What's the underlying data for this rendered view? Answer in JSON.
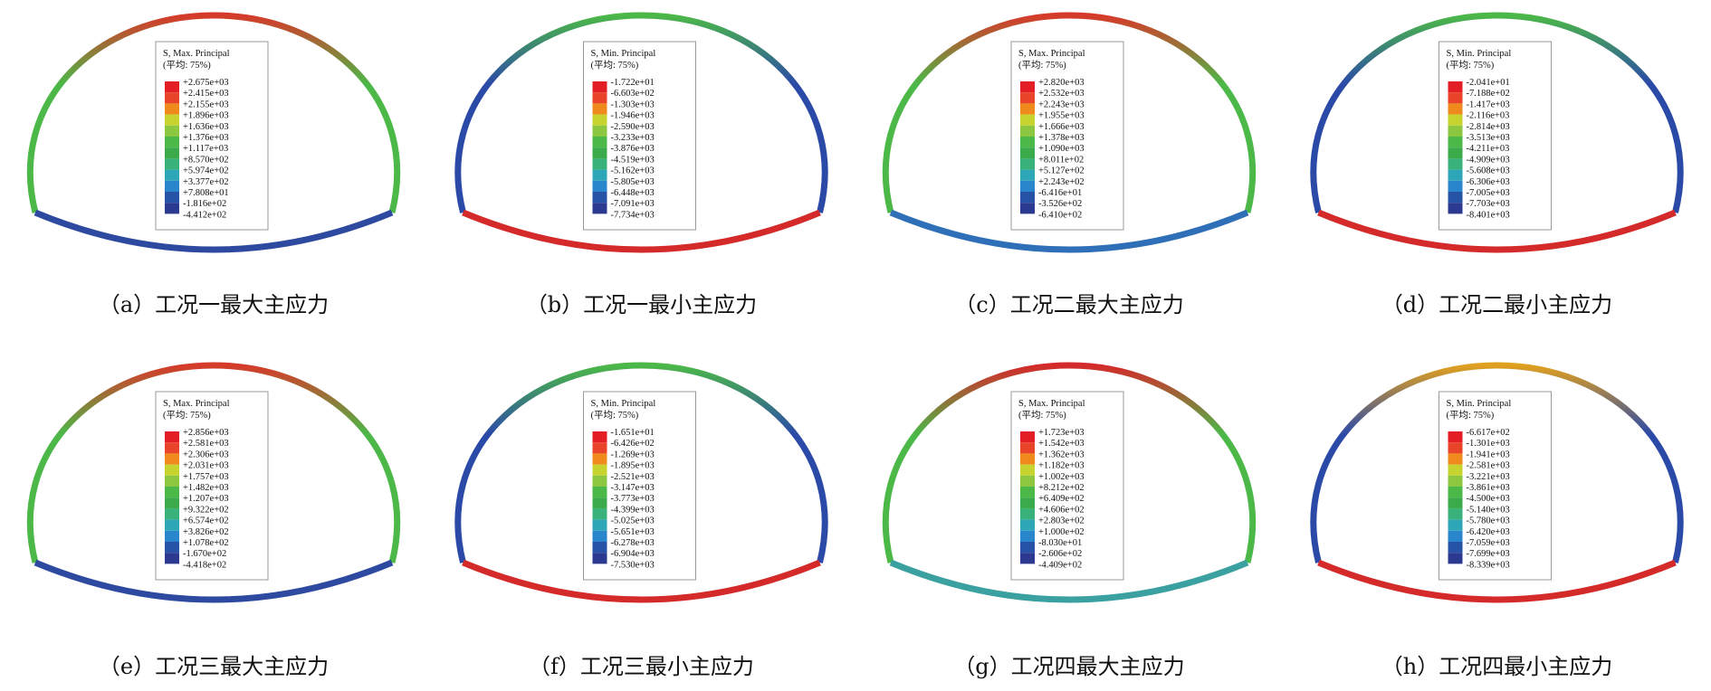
{
  "panels": [
    {
      "legend_title": "S, Max. Principal",
      "legend_subtitle": "(平均: 75%)",
      "legend_values": [
        "+2.675e+03",
        "+2.415e+03",
        "+2.155e+03",
        "+1.896e+03",
        "+1.636e+03",
        "+1.376e+03",
        "+1.117e+03",
        "+8.570e+02",
        "+5.974e+02",
        "+3.377e+02",
        "+7.808e+01",
        "-1.816e+02",
        "-4.412e+02"
      ],
      "caption": "（a）工况一最大主应力"
    },
    {
      "legend_title": "S, Min. Principal",
      "legend_subtitle": "(平均: 75%)",
      "legend_values": [
        "-1.722e+01",
        "-6.603e+02",
        "-1.303e+03",
        "-1.946e+03",
        "-2.590e+03",
        "-3.233e+03",
        "-3.876e+03",
        "-4.519e+03",
        "-5.162e+03",
        "-5.805e+03",
        "-6.448e+03",
        "-7.091e+03",
        "-7.734e+03"
      ],
      "caption": "（b）工况一最小主应力"
    },
    {
      "legend_title": "S, Max. Principal",
      "legend_subtitle": "(平均: 75%)",
      "legend_values": [
        "+2.820e+03",
        "+2.532e+03",
        "+2.243e+03",
        "+1.955e+03",
        "+1.666e+03",
        "+1.378e+03",
        "+1.090e+03",
        "+8.011e+02",
        "+5.127e+02",
        "+2.243e+02",
        "-6.416e+01",
        "-3.526e+02",
        "-6.410e+02"
      ],
      "caption": "（c）工况二最大主应力"
    },
    {
      "legend_title": "S, Min. Principal",
      "legend_subtitle": "(平均: 75%)",
      "legend_values": [
        "-2.041e+01",
        "-7.188e+02",
        "-1.417e+03",
        "-2.116e+03",
        "-2.814e+03",
        "-3.513e+03",
        "-4.211e+03",
        "-4.909e+03",
        "-5.608e+03",
        "-6.306e+03",
        "-7.005e+03",
        "-7.703e+03",
        "-8.401e+03"
      ],
      "caption": "（d）工况二最小主应力"
    },
    {
      "legend_title": "S, Max. Principal",
      "legend_subtitle": "(平均: 75%)",
      "legend_values": [
        "+2.856e+03",
        "+2.581e+03",
        "+2.306e+03",
        "+2.031e+03",
        "+1.757e+03",
        "+1.482e+03",
        "+1.207e+03",
        "+9.322e+02",
        "+6.574e+02",
        "+3.826e+02",
        "+1.078e+02",
        "-1.670e+02",
        "-4.418e+02"
      ],
      "caption": "（e）工况三最大主应力"
    },
    {
      "legend_title": "S, Min. Principal",
      "legend_subtitle": "(平均: 75%)",
      "legend_values": [
        "-1.651e+01",
        "-6.426e+02",
        "-1.269e+03",
        "-1.895e+03",
        "-2.521e+03",
        "-3.147e+03",
        "-3.773e+03",
        "-4.399e+03",
        "-5.025e+03",
        "-5.651e+03",
        "-6.278e+03",
        "-6.904e+03",
        "-7.530e+03"
      ],
      "caption": "（f）工况三最小主应力"
    },
    {
      "legend_title": "S, Max. Principal",
      "legend_subtitle": "(平均: 75%)",
      "legend_values": [
        "+1.723e+03",
        "+1.542e+03",
        "+1.362e+03",
        "+1.182e+03",
        "+1.002e+03",
        "+8.212e+02",
        "+6.409e+02",
        "+4.606e+02",
        "+2.803e+02",
        "+1.000e+02",
        "-8.030e+01",
        "-2.606e+02",
        "-4.409e+02"
      ],
      "caption": "（g）工况四最大主应力"
    },
    {
      "legend_title": "S, Min. Principal",
      "legend_subtitle": "(平均: 75%)",
      "legend_values": [
        "-6.617e+02",
        "-1.301e+03",
        "-1.941e+03",
        "-2.581e+03",
        "-3.221e+03",
        "-3.861e+03",
        "-4.500e+03",
        "-5.140e+03",
        "-5.780e+03",
        "-6.420e+03",
        "-7.059e+03",
        "-7.699e+03",
        "-8.339e+03"
      ],
      "caption": "（h）工况四最小主应力"
    }
  ]
}
